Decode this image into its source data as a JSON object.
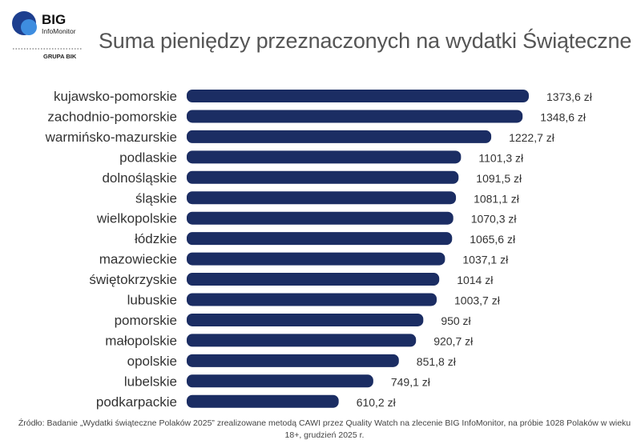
{
  "logo": {
    "brand": "BIG",
    "sub": "InfoMonitor",
    "group": "GRUPA BIK"
  },
  "chart_data": {
    "type": "bar",
    "orientation": "horizontal",
    "title": "Suma pieniędzy przeznaczonych na wydatki Świąteczne",
    "categories": [
      "kujawsko-pomorskie",
      "zachodnio-pomorskie",
      "warmińsko-mazurskie",
      "podlaskie",
      "dolnośląskie",
      "śląskie",
      "wielkopolskie",
      "łódzkie",
      "mazowieckie",
      "świętokrzyskie",
      "lubuskie",
      "pomorskie",
      "małopolskie",
      "opolskie",
      "lubelskie",
      "podkarpackie"
    ],
    "values": [
      1373.6,
      1348.6,
      1222.7,
      1101.3,
      1091.5,
      1081.1,
      1070.3,
      1065.6,
      1037.1,
      1014,
      1003.7,
      950,
      920.7,
      851.8,
      749.1,
      610.2
    ],
    "data_labels": [
      "1373,6 zł",
      "1348,6 zł",
      "1222,7 zł",
      "1101,3 zł",
      "1091,5 zł",
      "1081,1 zł",
      "1070,3 zł",
      "1065,6 zł",
      "1037,1 zł",
      "1014 zł",
      "1003,7 zł",
      "950 zł",
      "920,7 zł",
      "851,8 zł",
      "749,1 zł",
      "610,2 zł"
    ],
    "bar_color": "#1b2d63",
    "grid": false,
    "legend": "none"
  },
  "source": "Źródło: Badanie „Wydatki świąteczne Polaków 2025” zrealizowane metodą CAWI przez Quality Watch na zlecenie BIG InfoMonitor, na próbie 1028 Polaków w wieku 18+, grudzień 2025 r."
}
